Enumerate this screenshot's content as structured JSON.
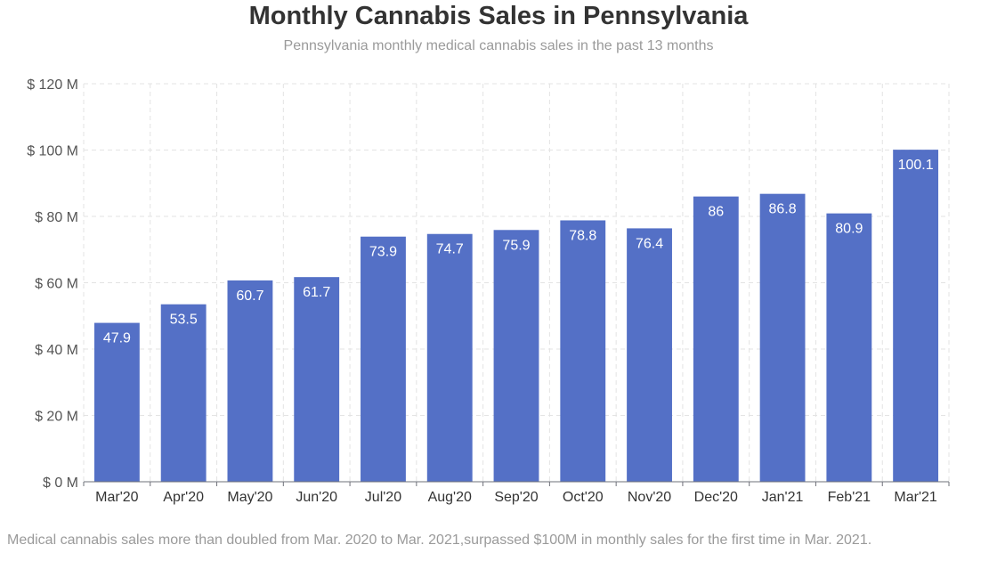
{
  "chart_data": {
    "type": "bar",
    "title": "Monthly Cannabis Sales in Pennsylvania",
    "subtitle": "Pennsylvania monthly medical cannabis sales in the past 13 months",
    "categories": [
      "Mar'20",
      "Apr'20",
      "May'20",
      "Jun'20",
      "Jul'20",
      "Aug'20",
      "Sep'20",
      "Oct'20",
      "Nov'20",
      "Dec'20",
      "Jan'21",
      "Feb'21",
      "Mar'21"
    ],
    "series": [
      {
        "values": [
          47.9,
          53.5,
          60.7,
          61.7,
          73.9,
          74.7,
          75.9,
          78.8,
          76.4,
          86,
          86.8,
          80.9,
          100.1
        ]
      }
    ],
    "data_labels": [
      "47.9",
      "53.5",
      "60.7",
      "61.7",
      "73.9",
      "74.7",
      "75.9",
      "78.8",
      "76.4",
      "86",
      "86.8",
      "80.9",
      "100.1"
    ],
    "ylim": [
      0,
      120
    ],
    "yticks": [
      0,
      20,
      40,
      60,
      80,
      100,
      120
    ],
    "ytick_labels": [
      "$ 0 M",
      "$ 20 M",
      "$ 40 M",
      "$ 60 M",
      "$ 80 M",
      "$ 100 M",
      "$ 120 M"
    ],
    "grid": true,
    "bar_color": "#5470c6",
    "footnote": "Medical cannabis sales more than doubled from Mar. 2020 to Mar. 2021,surpassed $100M in monthly sales for the first time in Mar. 2021."
  }
}
